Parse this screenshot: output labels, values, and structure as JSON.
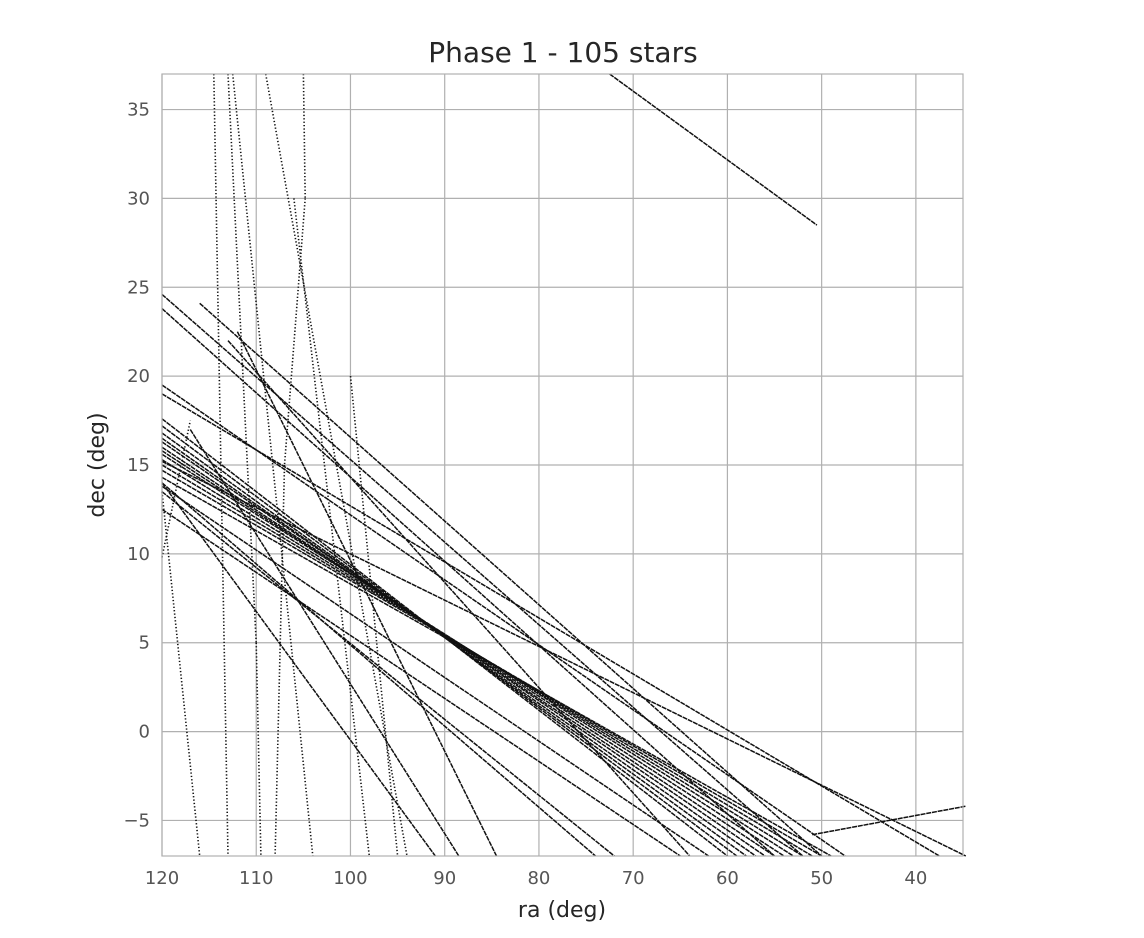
{
  "chart_data": {
    "type": "scatter",
    "title": "Phase 1 - 105 stars",
    "xlabel": "ra (deg)",
    "ylabel": "dec (deg)",
    "xlim": [
      120,
      35
    ],
    "ylim": [
      -7,
      37
    ],
    "x_inverted": true,
    "grid": true,
    "xticks": [
      120,
      110,
      100,
      90,
      80,
      70,
      60,
      50,
      40
    ],
    "yticks": [
      -5,
      0,
      5,
      10,
      15,
      20,
      25,
      30,
      35
    ],
    "marker_color": "#000000",
    "series": [
      {
        "x": [
          72.5,
          50.5
        ],
        "y": [
          37,
          28.5
        ]
      },
      {
        "x": [
          120,
          58
        ],
        "y": [
          16.8,
          -7
        ]
      },
      {
        "x": [
          120,
          57
        ],
        "y": [
          16.5,
          -7
        ]
      },
      {
        "x": [
          120,
          56
        ],
        "y": [
          16.3,
          -7
        ]
      },
      {
        "x": [
          120,
          55
        ],
        "y": [
          16.0,
          -7
        ]
      },
      {
        "x": [
          120,
          54
        ],
        "y": [
          15.8,
          -7
        ]
      },
      {
        "x": [
          120,
          53
        ],
        "y": [
          15.6,
          -7
        ]
      },
      {
        "x": [
          120,
          52
        ],
        "y": [
          15.3,
          -7
        ]
      },
      {
        "x": [
          120,
          51
        ],
        "y": [
          15.0,
          -7
        ]
      },
      {
        "x": [
          120,
          50
        ],
        "y": [
          14.7,
          -7
        ]
      },
      {
        "x": [
          120,
          49
        ],
        "y": [
          14.3,
          -7
        ]
      },
      {
        "x": [
          120,
          59
        ],
        "y": [
          17.2,
          -7
        ]
      },
      {
        "x": [
          120,
          60
        ],
        "y": [
          17.6,
          -7
        ]
      },
      {
        "x": [
          120,
          47.5
        ],
        "y": [
          19.5,
          -7
        ]
      },
      {
        "x": [
          120,
          37.5
        ],
        "y": [
          19.0,
          -7
        ]
      },
      {
        "x": [
          120,
          34.7
        ],
        "y": [
          15.2,
          -7
        ]
      },
      {
        "x": [
          120,
          52
        ],
        "y": [
          24.6,
          -7
        ]
      },
      {
        "x": [
          120,
          55
        ],
        "y": [
          23.8,
          -7
        ]
      },
      {
        "x": [
          116,
          50
        ],
        "y": [
          24.1,
          -7
        ]
      },
      {
        "x": [
          113,
          64
        ],
        "y": [
          22.0,
          -7
        ]
      },
      {
        "x": [
          120,
          74
        ],
        "y": [
          14.0,
          -7
        ]
      },
      {
        "x": [
          120,
          72
        ],
        "y": [
          13.5,
          -7
        ]
      },
      {
        "x": [
          120,
          62
        ],
        "y": [
          13.8,
          -7
        ]
      },
      {
        "x": [
          120,
          65
        ],
        "y": [
          12.5,
          -7
        ]
      },
      {
        "x": [
          112,
          84.5
        ],
        "y": [
          22.5,
          -7
        ]
      },
      {
        "x": [
          117,
          88.5
        ],
        "y": [
          17.0,
          -7
        ]
      },
      {
        "x": [
          120,
          91
        ],
        "y": [
          14.0,
          -7
        ]
      },
      {
        "x": [
          51,
          34.7
        ],
        "y": [
          -5.8,
          -4.2
        ]
      },
      {
        "x": [
          120,
          117
        ],
        "y": [
          9.8,
          17.5
        ]
      },
      {
        "x": [
          120,
          116
        ],
        "y": [
          13.5,
          -7
        ]
      },
      {
        "x": [
          114.5,
          113
        ],
        "y": [
          37,
          -7
        ]
      },
      {
        "x": [
          113,
          110
        ],
        "y": [
          37,
          5
        ]
      },
      {
        "x": [
          110,
          109.5
        ],
        "y": [
          5,
          -7
        ]
      },
      {
        "x": [
          112.5,
          104
        ],
        "y": [
          37,
          -7
        ]
      },
      {
        "x": [
          109,
          94
        ],
        "y": [
          37,
          -7
        ]
      },
      {
        "x": [
          105,
          104.8
        ],
        "y": [
          37,
          30
        ]
      },
      {
        "x": [
          104.8,
          107
        ],
        "y": [
          30,
          15
        ]
      },
      {
        "x": [
          107,
          108
        ],
        "y": [
          15,
          -7
        ]
      },
      {
        "x": [
          106,
          98
        ],
        "y": [
          30,
          -7
        ]
      },
      {
        "x": [
          100,
          95
        ],
        "y": [
          20,
          -7
        ]
      }
    ]
  }
}
